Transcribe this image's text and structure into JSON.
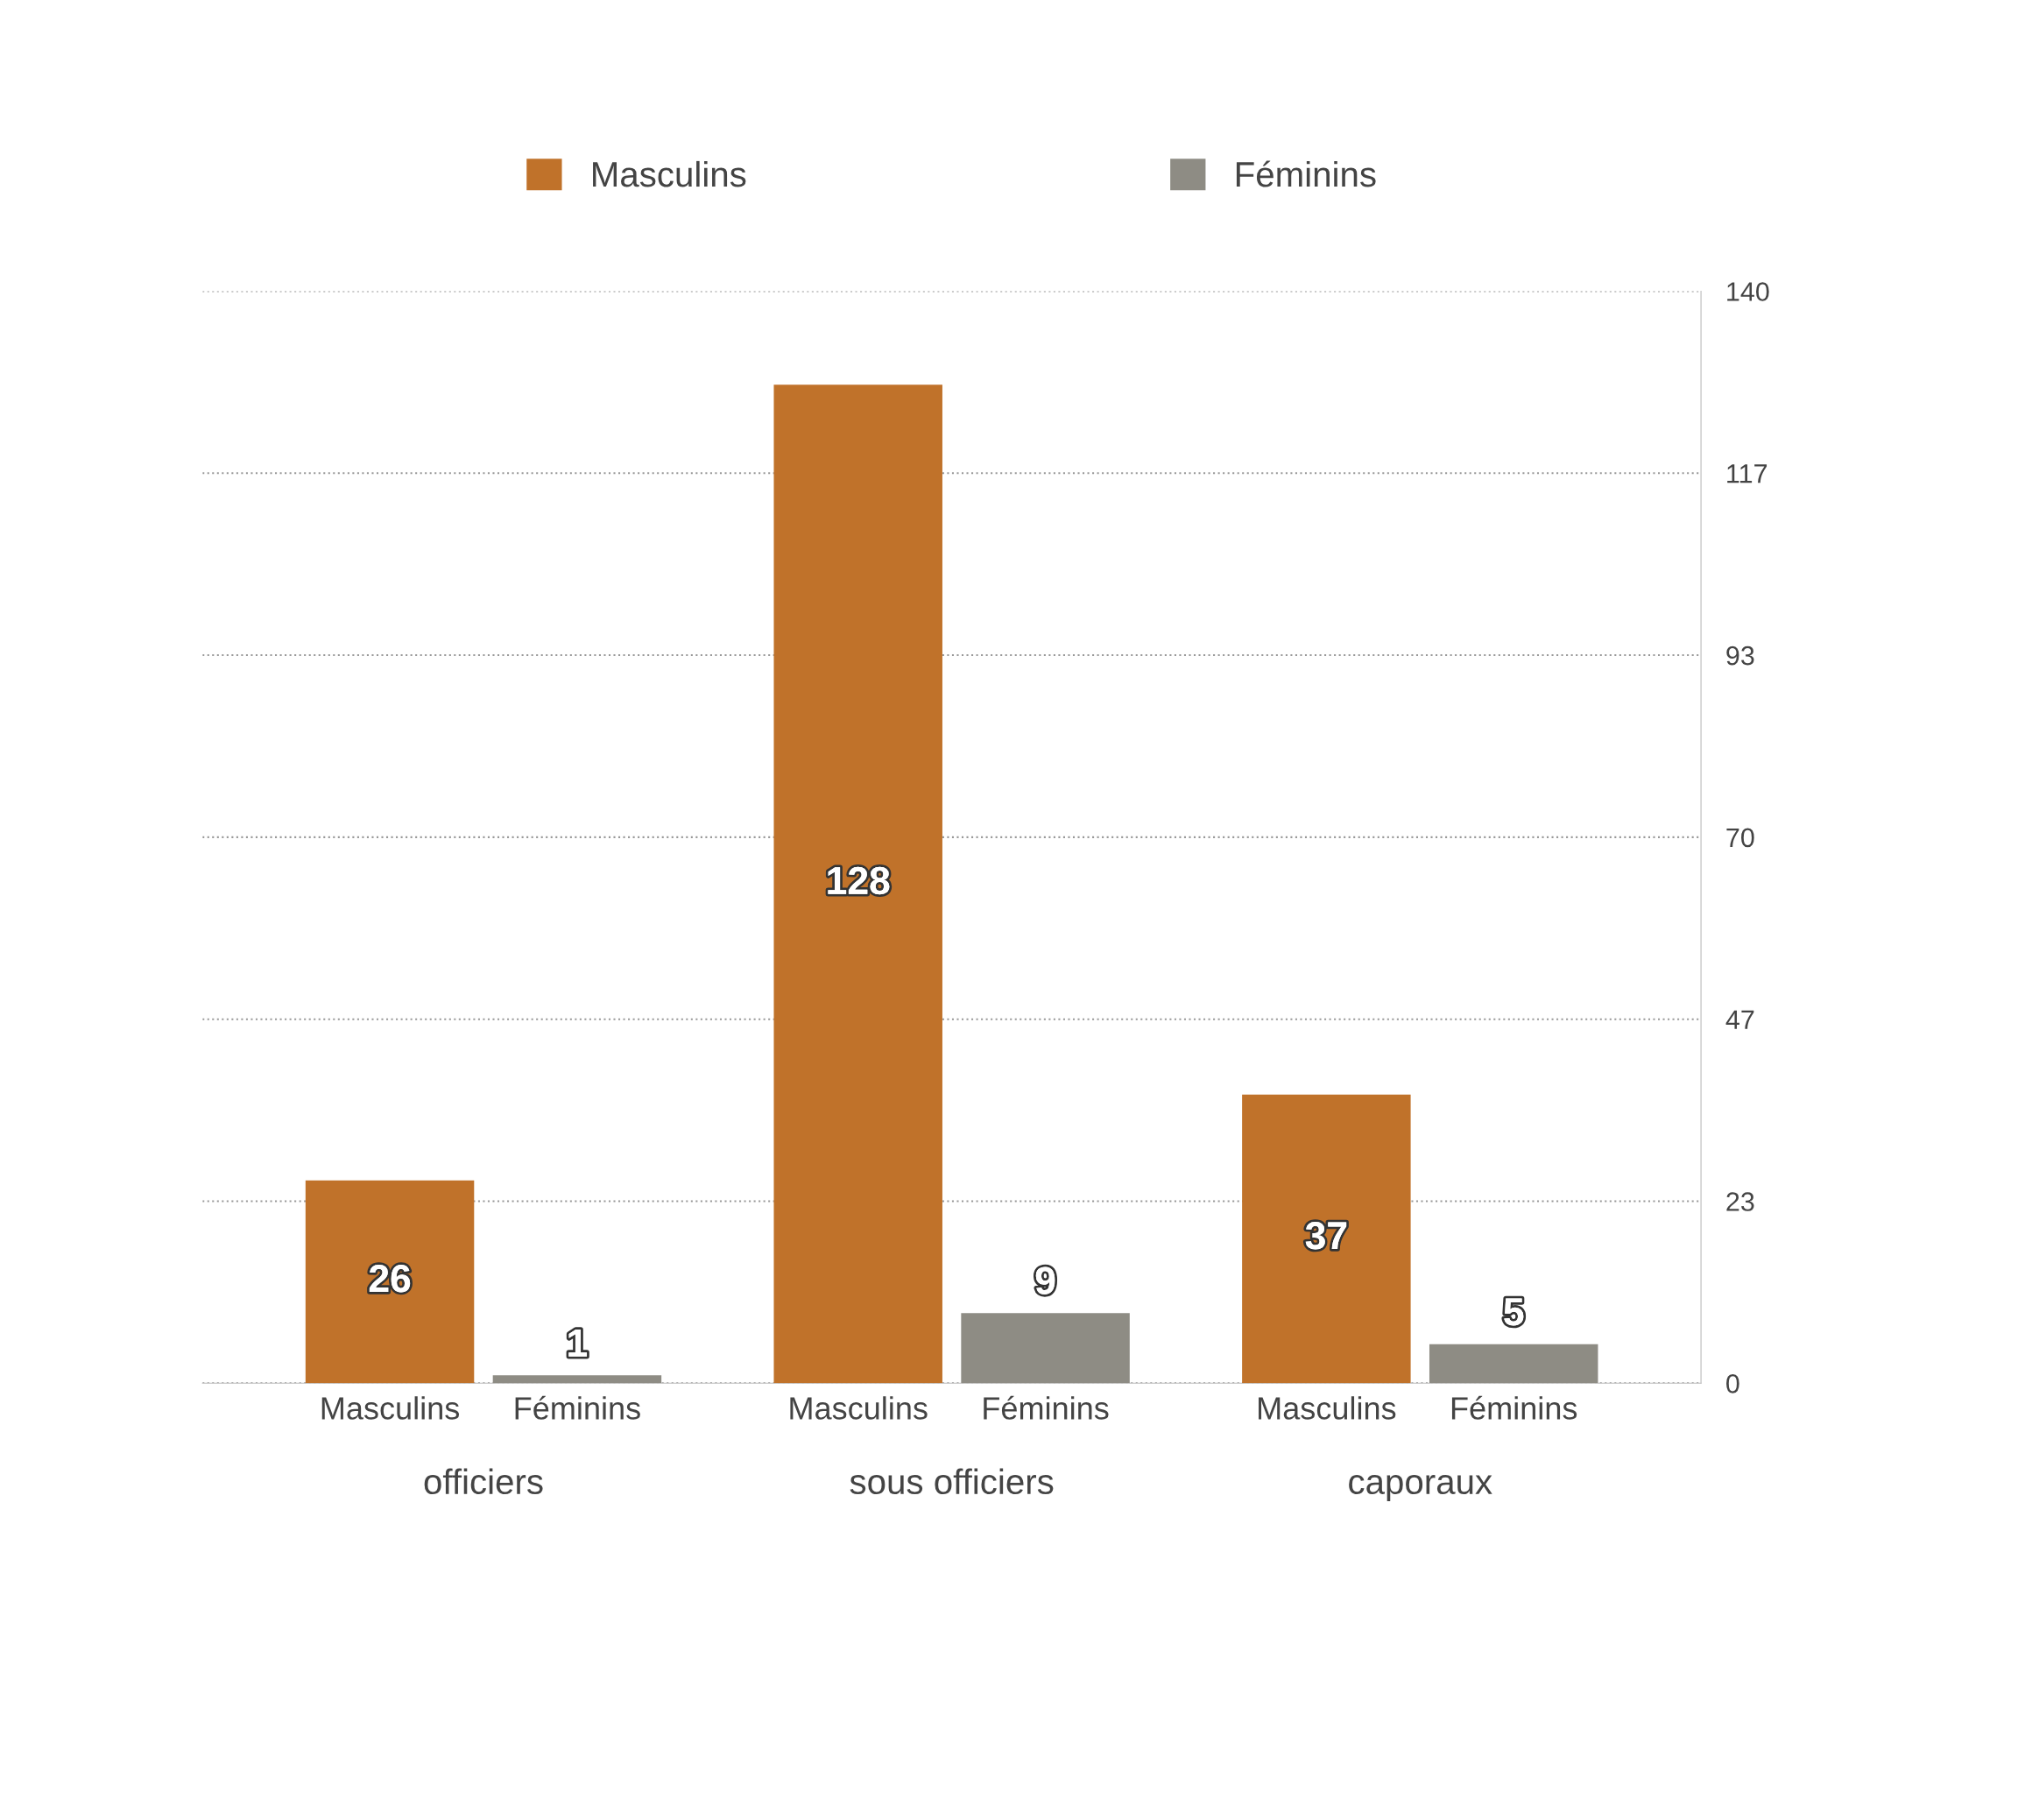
{
  "chart_data": {
    "type": "bar",
    "categories": [
      "officiers",
      "sous officiers",
      "caporaux"
    ],
    "series": [
      {
        "name": "Masculins",
        "color": "#c0722a",
        "values": [
          26,
          128,
          37
        ]
      },
      {
        "name": "Féminins",
        "color": "#8e8c84",
        "values": [
          1,
          9,
          5
        ]
      }
    ],
    "ylim": [
      0,
      140
    ],
    "yticks": [
      0,
      {
        "value": 23.333,
        "label": "23"
      },
      {
        "value": 46.667,
        "label": "47"
      },
      70,
      {
        "value": 93.333,
        "label": "93"
      },
      {
        "value": 116.667,
        "label": "117"
      },
      140
    ],
    "grid": "y",
    "legend": "top",
    "data_labels": true
  }
}
